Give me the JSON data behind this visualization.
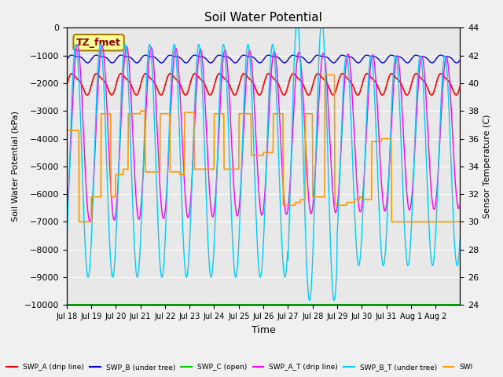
{
  "title": "Soil Water Potential",
  "ylabel_left": "Soil Water Potential (kPa)",
  "ylabel_right": "Sensor Temperature (C)",
  "xlabel": "Time",
  "ylim_left": [
    -10000,
    0
  ],
  "ylim_right": [
    24,
    44
  ],
  "background_color": "#f0f0f0",
  "plot_bg_color": "#e8e8e8",
  "legend_label": "TZ_fmet",
  "x_ticks": [
    "Jul 18",
    "Jul 19",
    "Jul 20",
    "Jul 21",
    "Jul 22",
    "Jul 23",
    "Jul 24",
    "Jul 25",
    "Jul 26",
    "Jul 27",
    "Jul 28",
    "Jul 29",
    "Jul 30",
    "Jul 31",
    "Aug 1",
    "Aug 2"
  ],
  "swp_b_mean": -1100,
  "swp_b_amp1": 120,
  "swp_b_amp2": 50,
  "swp_a_mean": -2000,
  "swp_a_amp1": 350,
  "swp_a_amp2": 100,
  "swp_at_mean": -3800,
  "swp_at_amp": 3200,
  "swp_bt_mean": -4800,
  "swp_bt_amp": 4200,
  "orange_steps": [
    -3700,
    -3700,
    -7000,
    -6100,
    -3100,
    -3100,
    -6000,
    -5300,
    -5300,
    -5300,
    -3150,
    -3150,
    -3150,
    -5000,
    -5000,
    -5100,
    -5100,
    -5100,
    -3100,
    -3100,
    -6300,
    -6300,
    -6300,
    -3100,
    -3100,
    -6300,
    -6300,
    -1700,
    -6200,
    -6200,
    -6200,
    -4100,
    -4100,
    -4100,
    -7000,
    -7000,
    -7000,
    -7000,
    -7000,
    -7000,
    -7000,
    -7000,
    -7000,
    -7000,
    -7000,
    -7000,
    -7000,
    -7000,
    -7000,
    -7000,
    -7000,
    -7000,
    -7000,
    -7000,
    -7000,
    -7000,
    -7000,
    -7000,
    -7000,
    -7000,
    -7000,
    -7000,
    -7000,
    -7000
  ],
  "colors": {
    "swp_a": "#ff0000",
    "swp_b": "#0000cc",
    "swp_c": "#00cc00",
    "swp_at": "#ff00ff",
    "swp_bt": "#00ccff",
    "orange": "#ff9900"
  },
  "legend_entries": [
    {
      "label": "SWP_A (drip line)",
      "color": "#ff0000"
    },
    {
      "label": "SWP_B (under tree)",
      "color": "#0000cc"
    },
    {
      "label": "SWP_C (open)",
      "color": "#00cc00"
    },
    {
      "label": "SWP_A_T (drip line)",
      "color": "#ff00ff"
    },
    {
      "label": "SWP_B_T (under tree)",
      "color": "#00ccff"
    },
    {
      "label": "SWI",
      "color": "#ff9900"
    }
  ]
}
